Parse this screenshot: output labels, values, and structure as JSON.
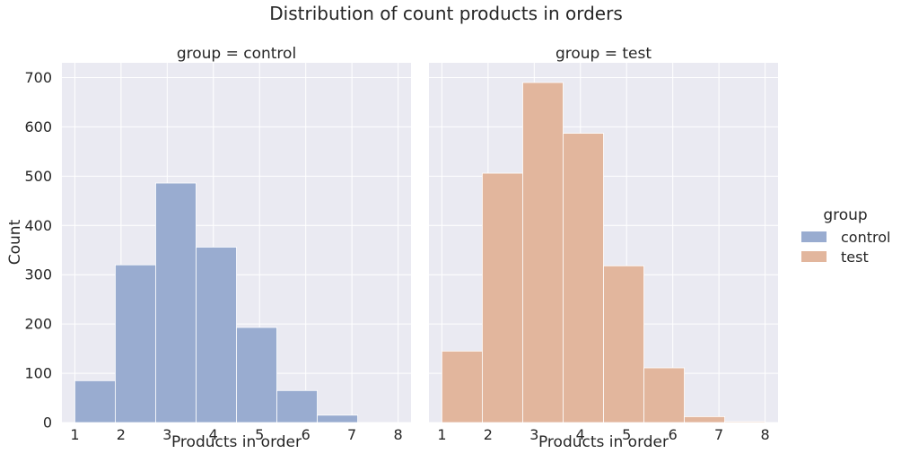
{
  "chart_data": {
    "type": "bar",
    "title": "Distribution of count products in orders",
    "ylabel": "Count",
    "ylim": [
      0,
      730
    ],
    "yticks": [
      0,
      100,
      200,
      300,
      400,
      500,
      600,
      700
    ],
    "legend": {
      "title": "group",
      "placement": "right",
      "items": [
        {
          "label": "control",
          "color": "#99acd0"
        },
        {
          "label": "test",
          "color": "#e2b69d"
        }
      ]
    },
    "panels": [
      {
        "title": "group = control",
        "xlabel": "Products in order",
        "xlim": [
          0.72,
          8.28
        ],
        "xticks": [
          "1",
          "2",
          "3",
          "4",
          "5",
          "6",
          "7",
          "8"
        ],
        "color": "#99acd0",
        "bins": [
          {
            "x0": 1.0,
            "x1": 1.875,
            "value": 85
          },
          {
            "x0": 1.875,
            "x1": 2.75,
            "value": 320
          },
          {
            "x0": 2.75,
            "x1": 3.625,
            "value": 486
          },
          {
            "x0": 3.625,
            "x1": 4.5,
            "value": 356
          },
          {
            "x0": 4.5,
            "x1": 5.375,
            "value": 193
          },
          {
            "x0": 5.375,
            "x1": 6.25,
            "value": 65
          },
          {
            "x0": 6.25,
            "x1": 7.125,
            "value": 15
          },
          {
            "x0": 7.125,
            "x1": 8.0,
            "value": 0
          }
        ]
      },
      {
        "title": "group = test",
        "xlabel": "Products in order",
        "xlim": [
          0.72,
          8.28
        ],
        "xticks": [
          "1",
          "2",
          "3",
          "4",
          "5",
          "6",
          "7",
          "8"
        ],
        "color": "#e2b69d",
        "bins": [
          {
            "x0": 1.0,
            "x1": 1.875,
            "value": 145
          },
          {
            "x0": 1.875,
            "x1": 2.75,
            "value": 506
          },
          {
            "x0": 2.75,
            "x1": 3.625,
            "value": 690
          },
          {
            "x0": 3.625,
            "x1": 4.5,
            "value": 587
          },
          {
            "x0": 4.5,
            "x1": 5.375,
            "value": 318
          },
          {
            "x0": 5.375,
            "x1": 6.25,
            "value": 111
          },
          {
            "x0": 6.25,
            "x1": 7.125,
            "value": 12
          },
          {
            "x0": 7.125,
            "x1": 8.0,
            "value": 2
          }
        ]
      }
    ]
  }
}
